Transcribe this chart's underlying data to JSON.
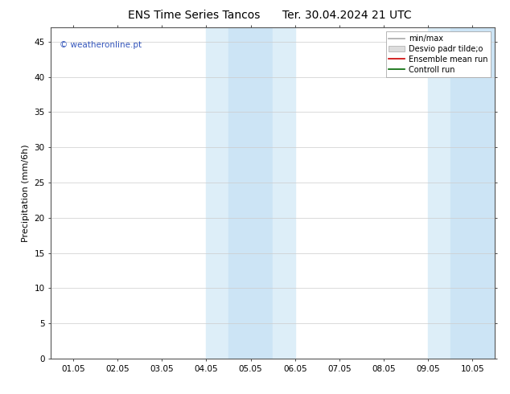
{
  "title_left": "ENS Time Series Tancos",
  "title_right": "Ter. 30.04.2024 21 UTC",
  "ylabel": "Precipitation (mm/6h)",
  "watermark": "© weatheronline.pt",
  "ylim": [
    0,
    47
  ],
  "yticks": [
    0,
    5,
    10,
    15,
    20,
    25,
    30,
    35,
    40,
    45
  ],
  "xtick_labels": [
    "01.05",
    "02.05",
    "03.05",
    "04.05",
    "05.05",
    "06.05",
    "07.05",
    "08.05",
    "09.05",
    "10.05"
  ],
  "xtick_positions": [
    0,
    1,
    2,
    3,
    4,
    5,
    6,
    7,
    8,
    9
  ],
  "xlim": [
    -0.5,
    9.5
  ],
  "shaded_bands": [
    {
      "xstart": 3.0,
      "xend": 3.5,
      "color": "#ddeef8"
    },
    {
      "xstart": 3.5,
      "xend": 4.5,
      "color": "#cce4f5"
    },
    {
      "xstart": 4.5,
      "xend": 5.0,
      "color": "#ddeef8"
    },
    {
      "xstart": 8.0,
      "xend": 8.5,
      "color": "#ddeef8"
    },
    {
      "xstart": 8.5,
      "xend": 9.5,
      "color": "#cce4f5"
    }
  ],
  "legend_entries": [
    {
      "label": "min/max",
      "color": "#aaaaaa",
      "lw": 1.2,
      "linestyle": "-"
    },
    {
      "label": "Desvio padr tilde;o",
      "color": "#dddddd",
      "lw": 6,
      "linestyle": "-"
    },
    {
      "label": "Ensemble mean run",
      "color": "#cc0000",
      "lw": 1.2,
      "linestyle": "-"
    },
    {
      "label": "Controll run",
      "color": "#006600",
      "lw": 1.2,
      "linestyle": "-"
    }
  ],
  "background_color": "#ffffff",
  "grid_color": "#cccccc",
  "title_fontsize": 10,
  "tick_fontsize": 7.5,
  "ylabel_fontsize": 8,
  "legend_fontsize": 7,
  "watermark_color": "#3355bb",
  "watermark_fontsize": 7.5
}
